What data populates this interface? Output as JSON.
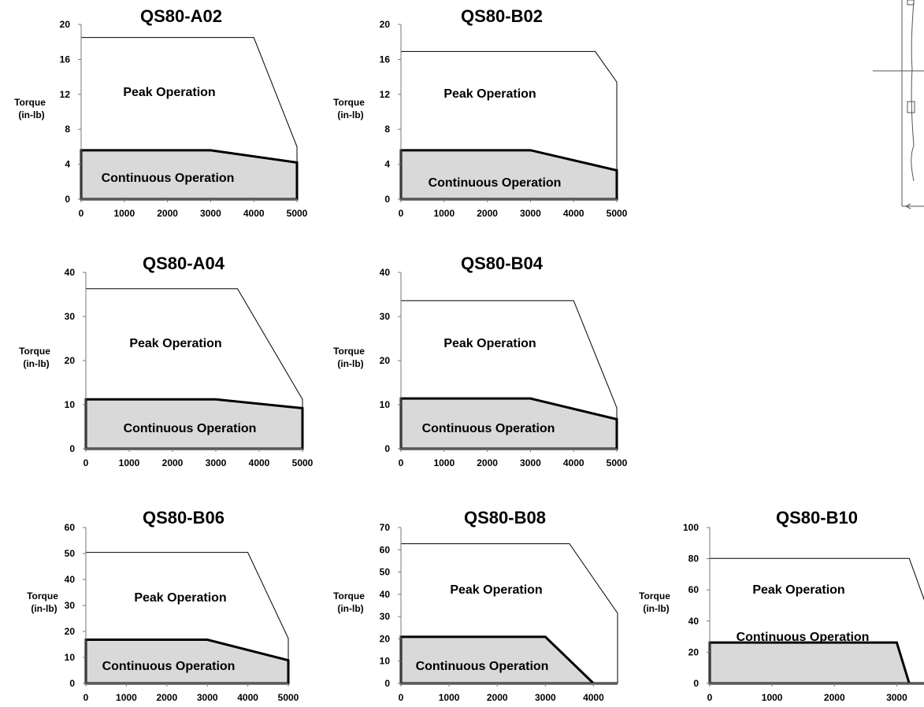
{
  "chart_data": [
    {
      "type": "area",
      "title": "QS80-A02",
      "ylabel": [
        "Torque",
        "(in-lb)"
      ],
      "xticks": [
        "0",
        "1000",
        "2000",
        "3000",
        "4000",
        "5000"
      ],
      "yticks": [
        "0",
        "4",
        "8",
        "12",
        "16",
        "20"
      ],
      "xlim": [
        0,
        5000
      ],
      "ylim": [
        0,
        20
      ],
      "series": [
        {
          "name": "Peak Operation",
          "x": [
            0,
            4000,
            5000,
            5000
          ],
          "y": [
            18.5,
            18.5,
            6,
            0
          ]
        },
        {
          "name": "Continuous Operation",
          "x": [
            0,
            3000,
            5000,
            5000
          ],
          "y": [
            5.6,
            5.6,
            4.2,
            0
          ]
        }
      ]
    },
    {
      "type": "area",
      "title": "QS80-B02",
      "ylabel": [
        "Torque",
        "(in-lb)"
      ],
      "xticks": [
        "0",
        "1000",
        "2000",
        "3000",
        "4000",
        "5000"
      ],
      "yticks": [
        "0",
        "4",
        "8",
        "12",
        "16",
        "20"
      ],
      "xlim": [
        0,
        5000
      ],
      "ylim": [
        0,
        20
      ],
      "series": [
        {
          "name": "Peak Operation",
          "x": [
            0,
            4500,
            5000,
            5000
          ],
          "y": [
            16.9,
            16.9,
            13.4,
            0
          ]
        },
        {
          "name": "Continuous Operation",
          "x": [
            0,
            3000,
            5000,
            5000
          ],
          "y": [
            5.6,
            5.6,
            3.3,
            0
          ]
        }
      ]
    },
    {
      "type": "area",
      "title": "QS80-A04",
      "ylabel": [
        "Torque",
        "(in-lb)"
      ],
      "xticks": [
        "0",
        "1000",
        "2000",
        "3000",
        "4000",
        "5000"
      ],
      "yticks": [
        "0",
        "10",
        "20",
        "30",
        "40"
      ],
      "xlim": [
        0,
        5000
      ],
      "ylim": [
        0,
        40
      ],
      "series": [
        {
          "name": "Peak Operation",
          "x": [
            0,
            3500,
            5000,
            5000
          ],
          "y": [
            36.3,
            36.3,
            11.2,
            0
          ]
        },
        {
          "name": "Continuous Operation",
          "x": [
            0,
            3000,
            5000,
            5000
          ],
          "y": [
            11.2,
            11.2,
            9.2,
            0
          ]
        }
      ]
    },
    {
      "type": "area",
      "title": "QS80-B04",
      "ylabel": [
        "Torque",
        "(in-lb)"
      ],
      "xticks": [
        "0",
        "1000",
        "2000",
        "3000",
        "4000",
        "5000"
      ],
      "yticks": [
        "0",
        "10",
        "20",
        "30",
        "40"
      ],
      "xlim": [
        0,
        5000
      ],
      "ylim": [
        0,
        40
      ],
      "series": [
        {
          "name": "Peak Operation",
          "x": [
            0,
            4000,
            5000,
            5000
          ],
          "y": [
            33.6,
            33.6,
            9.3,
            0
          ]
        },
        {
          "name": "Continuous Operation",
          "x": [
            0,
            3000,
            5000,
            5000
          ],
          "y": [
            11.4,
            11.4,
            6.7,
            0
          ]
        }
      ]
    },
    {
      "type": "area",
      "title": "QS80-B06",
      "ylabel": [
        "Torque",
        "(in-lb)"
      ],
      "xticks": [
        "0",
        "1000",
        "2000",
        "3000",
        "4000",
        "5000"
      ],
      "yticks": [
        "0",
        "10",
        "20",
        "30",
        "40",
        "50",
        "60"
      ],
      "xlim": [
        0,
        5000
      ],
      "ylim": [
        0,
        60
      ],
      "series": [
        {
          "name": "Peak Operation",
          "x": [
            0,
            4000,
            5000,
            5000
          ],
          "y": [
            50.4,
            50.4,
            17.3,
            0
          ]
        },
        {
          "name": "Continuous Operation",
          "x": [
            0,
            3000,
            5000,
            5000
          ],
          "y": [
            16.8,
            16.8,
            8.9,
            0
          ]
        }
      ]
    },
    {
      "type": "area",
      "title": "QS80-B08",
      "ylabel": [
        "Torque",
        "(in-lb)"
      ],
      "xticks": [
        "0",
        "1000",
        "2000",
        "3000",
        "4000"
      ],
      "yticks": [
        "0",
        "10",
        "20",
        "30",
        "40",
        "50",
        "60",
        "70"
      ],
      "xlim": [
        0,
        4500
      ],
      "ylim": [
        0,
        70
      ],
      "series": [
        {
          "name": "Peak Operation",
          "x": [
            0,
            3500,
            4500,
            4500
          ],
          "y": [
            62.7,
            62.7,
            31.5,
            0
          ]
        },
        {
          "name": "Continuous Operation",
          "x": [
            0,
            3000,
            4000,
            4500
          ],
          "y": [
            20.9,
            20.9,
            0,
            0
          ]
        }
      ]
    },
    {
      "type": "area",
      "title": "QS80-B10",
      "ylabel": [
        "Torque",
        "(in-lb)"
      ],
      "xticks": [
        "0",
        "1000",
        "2000",
        "3000"
      ],
      "yticks": [
        "0",
        "20",
        "40",
        "60",
        "80",
        "100"
      ],
      "xlim": [
        0,
        3500
      ],
      "ylim": [
        0,
        100
      ],
      "series": [
        {
          "name": "Peak Operation",
          "x": [
            0,
            3200,
            3500
          ],
          "y": [
            80.2,
            80.2,
            47
          ]
        },
        {
          "name": "Continuous Operation",
          "x": [
            0,
            3000,
            3200,
            3500
          ],
          "y": [
            26.2,
            26.2,
            0,
            0
          ]
        }
      ]
    }
  ]
}
